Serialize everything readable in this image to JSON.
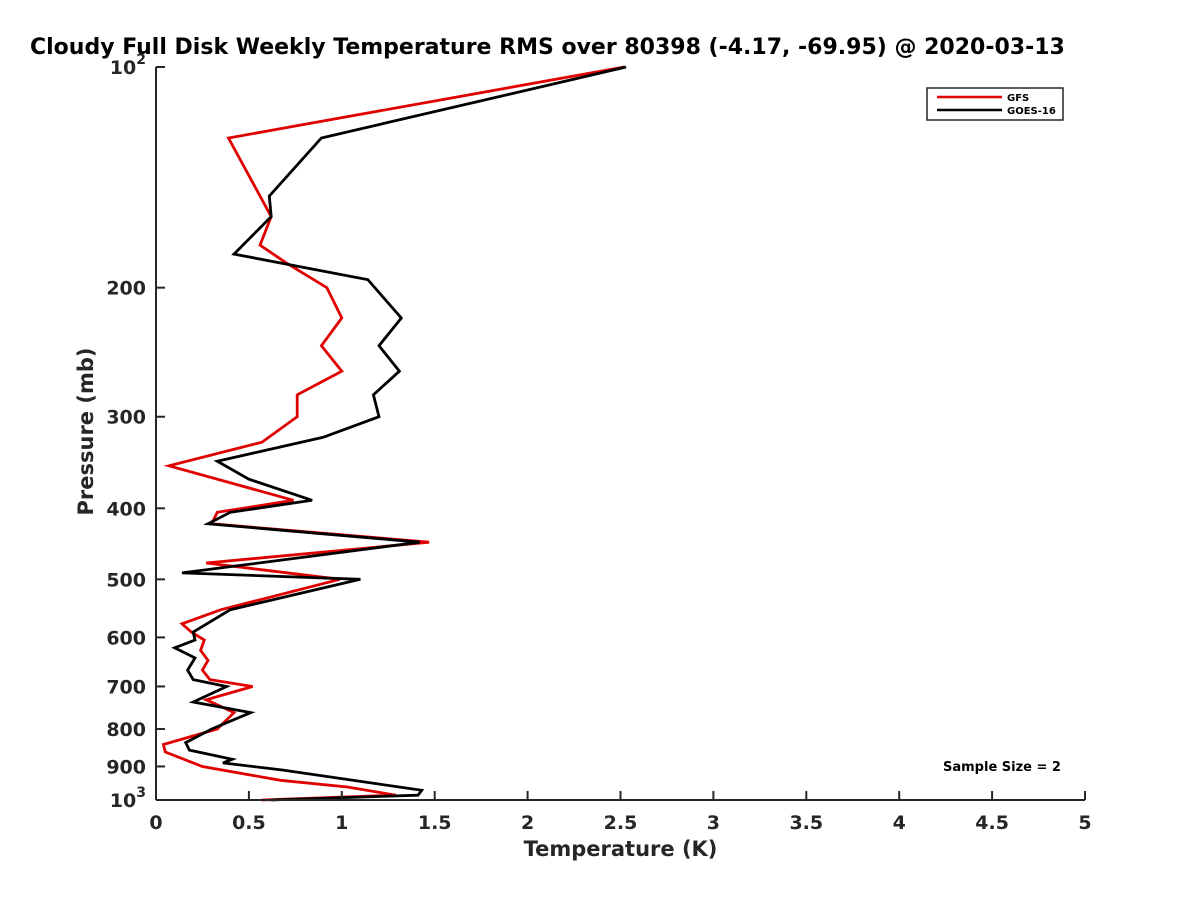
{
  "chart_data": {
    "type": "line",
    "title": "Cloudy Full Disk Weekly Temperature RMS over 80398 (-4.17, -69.95) @ 2020-03-13",
    "xlabel": "Temperature (K)",
    "ylabel": "Pressure (mb)",
    "xlim": [
      0,
      5
    ],
    "ylim": [
      100,
      1000
    ],
    "yscale": "log",
    "y_reversed": true,
    "x_ticks": [
      "0",
      "0.5",
      "1",
      "1.5",
      "2",
      "2.5",
      "3",
      "3.5",
      "4",
      "4.5",
      "5"
    ],
    "x_tick_values": [
      0,
      0.5,
      1,
      1.5,
      2,
      2.5,
      3,
      3.5,
      4,
      4.5,
      5
    ],
    "y_ticks": [
      {
        "value": 100,
        "base": "10",
        "exp": "2"
      },
      {
        "value": 200,
        "label": "200"
      },
      {
        "value": 300,
        "label": "300"
      },
      {
        "value": 400,
        "label": "400"
      },
      {
        "value": 500,
        "label": "500"
      },
      {
        "value": 600,
        "label": "600"
      },
      {
        "value": 700,
        "label": "700"
      },
      {
        "value": 800,
        "label": "800"
      },
      {
        "value": 900,
        "label": "900"
      },
      {
        "value": 1000,
        "base": "10",
        "exp": "3"
      }
    ],
    "grid": false,
    "legend_position": "top-right",
    "annotation": "Sample Size = 2",
    "series": [
      {
        "name": "GFS",
        "color": "#e00000",
        "points": [
          [
            2.52,
            100
          ],
          [
            0.39,
            125
          ],
          [
            0.62,
            160
          ],
          [
            0.56,
            175
          ],
          [
            0.7,
            185
          ],
          [
            0.92,
            200
          ],
          [
            1.0,
            220
          ],
          [
            0.89,
            240
          ],
          [
            1.0,
            260
          ],
          [
            0.76,
            280
          ],
          [
            0.76,
            300
          ],
          [
            0.57,
            325
          ],
          [
            0.07,
            350
          ],
          [
            0.74,
            390
          ],
          [
            0.33,
            405
          ],
          [
            0.3,
            420
          ],
          [
            1.47,
            445
          ],
          [
            0.27,
            475
          ],
          [
            0.99,
            500
          ],
          [
            0.35,
            550
          ],
          [
            0.14,
            575
          ],
          [
            0.19,
            590
          ],
          [
            0.26,
            605
          ],
          [
            0.24,
            625
          ],
          [
            0.28,
            645
          ],
          [
            0.25,
            665
          ],
          [
            0.29,
            685
          ],
          [
            0.52,
            700
          ],
          [
            0.27,
            730
          ],
          [
            0.42,
            760
          ],
          [
            0.33,
            800
          ],
          [
            0.04,
            840
          ],
          [
            0.05,
            860
          ],
          [
            0.25,
            900
          ],
          [
            0.67,
            940
          ],
          [
            1.03,
            960
          ],
          [
            1.29,
            985
          ],
          [
            0.57,
            1000
          ]
        ]
      },
      {
        "name": "GOES-16",
        "color": "#000000",
        "points": [
          [
            2.53,
            100
          ],
          [
            0.89,
            125
          ],
          [
            0.61,
            150
          ],
          [
            0.62,
            160
          ],
          [
            0.42,
            180
          ],
          [
            1.14,
            195
          ],
          [
            1.32,
            220
          ],
          [
            1.2,
            240
          ],
          [
            1.31,
            260
          ],
          [
            1.17,
            280
          ],
          [
            1.2,
            300
          ],
          [
            0.9,
            320
          ],
          [
            0.33,
            345
          ],
          [
            0.5,
            365
          ],
          [
            0.84,
            390
          ],
          [
            0.4,
            405
          ],
          [
            0.28,
            420
          ],
          [
            1.42,
            445
          ],
          [
            0.14,
            490
          ],
          [
            1.1,
            500
          ],
          [
            0.4,
            550
          ],
          [
            0.2,
            590
          ],
          [
            0.21,
            605
          ],
          [
            0.1,
            620
          ],
          [
            0.21,
            640
          ],
          [
            0.17,
            665
          ],
          [
            0.2,
            685
          ],
          [
            0.38,
            700
          ],
          [
            0.2,
            735
          ],
          [
            0.51,
            760
          ],
          [
            0.3,
            800
          ],
          [
            0.16,
            835
          ],
          [
            0.18,
            855
          ],
          [
            0.41,
            880
          ],
          [
            0.36,
            890
          ],
          [
            0.68,
            910
          ],
          [
            1.43,
            970
          ],
          [
            1.41,
            985
          ],
          [
            0.62,
            1000
          ]
        ]
      }
    ]
  }
}
